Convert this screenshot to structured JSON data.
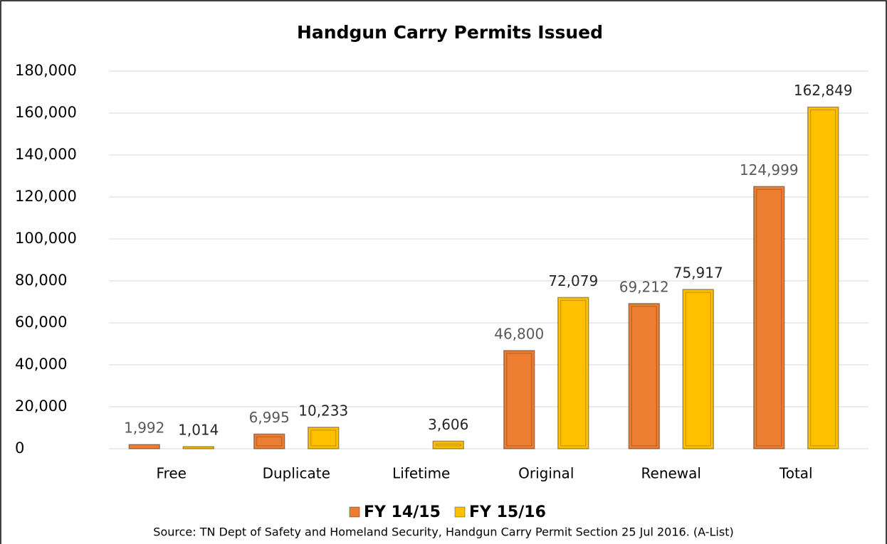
{
  "chart_data": {
    "type": "bar",
    "title": "Handgun Carry Permits Issued",
    "source": "Source: TN Dept of Safety and Homeland Security, Handgun Carry Permit Section 25 Jul 2016. (A-List)",
    "categories": [
      "Free",
      "Duplicate",
      "Lifetime",
      "Original",
      "Renewal",
      "Total"
    ],
    "series": [
      {
        "name": "FY 14/15",
        "color": "#ed7d31",
        "label_color": "#595959",
        "values": [
          1992,
          6995,
          null,
          46800,
          69212,
          124999
        ],
        "value_labels": [
          "1,992",
          "6,995",
          null,
          "46,800",
          "69,212",
          "124,999"
        ]
      },
      {
        "name": "FY 15/16",
        "color": "#ffc000",
        "label_color": "#262626",
        "values": [
          1014,
          10233,
          3606,
          72079,
          75917,
          162849
        ],
        "value_labels": [
          "1,014",
          "10,233",
          "3,606",
          "72,079",
          "75,917",
          "162,849"
        ]
      }
    ],
    "ylim": [
      0,
      180000
    ],
    "yticks": [
      0,
      {
        "value": 20000,
        "label": "20,000"
      },
      {
        "value": 40000,
        "label": "40,000"
      },
      {
        "value": 60000,
        "label": "60,000"
      },
      {
        "value": 80000,
        "label": "80,000"
      },
      {
        "value": 100000,
        "label": "100,000"
      },
      {
        "value": 120000,
        "label": "120,000"
      },
      {
        "value": 140000,
        "label": "140,000"
      },
      {
        "value": 160000,
        "label": "160,000"
      },
      {
        "value": 180000,
        "label": "180,000"
      }
    ],
    "grid": true,
    "legend": "bottom"
  }
}
